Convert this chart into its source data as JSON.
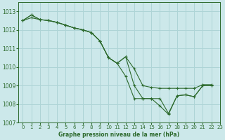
{
  "xlabel": "Graphe pression niveau de la mer (hPa)",
  "bg_color": "#cce8ea",
  "grid_color": "#aed4d6",
  "line_color": "#2d6a2d",
  "ylim": [
    1007,
    1013.5
  ],
  "xlim": [
    -0.5,
    23
  ],
  "yticks": [
    1007,
    1008,
    1009,
    1010,
    1011,
    1012,
    1013
  ],
  "xticks": [
    0,
    1,
    2,
    3,
    4,
    5,
    6,
    7,
    8,
    9,
    10,
    11,
    12,
    13,
    14,
    15,
    16,
    17,
    18,
    19,
    20,
    21,
    22,
    23
  ],
  "series1_x": [
    0,
    1,
    2,
    3,
    4,
    5,
    6,
    7,
    8,
    9,
    10,
    11,
    12,
    13,
    14,
    15,
    16,
    17,
    18,
    19,
    20,
    21,
    22
  ],
  "series1_y": [
    1012.5,
    1012.8,
    1012.55,
    1012.5,
    1012.4,
    1012.25,
    1012.1,
    1012.0,
    1011.85,
    1011.4,
    1010.5,
    1010.2,
    1010.55,
    1009.0,
    1008.3,
    1008.3,
    1008.3,
    1007.5,
    1008.45,
    1008.5,
    1008.4,
    1009.0,
    1009.0
  ],
  "series2_x": [
    0,
    1,
    2,
    3,
    4,
    5,
    6,
    7,
    8,
    9,
    10,
    11,
    12,
    13,
    14,
    15,
    16,
    17,
    18,
    19,
    20,
    21,
    22
  ],
  "series2_y": [
    1012.5,
    1012.8,
    1012.55,
    1012.5,
    1012.4,
    1012.25,
    1012.1,
    1012.0,
    1011.85,
    1011.4,
    1010.5,
    1010.2,
    1009.5,
    1008.3,
    1008.3,
    1008.3,
    1007.9,
    1007.45,
    1008.45,
    1008.5,
    1008.4,
    1009.0,
    1009.0
  ],
  "series3_x": [
    0,
    1,
    2,
    3,
    4,
    5,
    6,
    7,
    8,
    9,
    10,
    11,
    12,
    13,
    14,
    15,
    16,
    17,
    18,
    19,
    20,
    21,
    22
  ],
  "series3_y": [
    1012.5,
    1012.65,
    1012.55,
    1012.5,
    1012.4,
    1012.25,
    1012.1,
    1012.0,
    1011.85,
    1011.4,
    1010.5,
    1010.2,
    1010.55,
    1009.9,
    1009.0,
    1008.9,
    1008.85,
    1008.85,
    1008.85,
    1008.85,
    1008.85,
    1009.05,
    1009.05
  ]
}
